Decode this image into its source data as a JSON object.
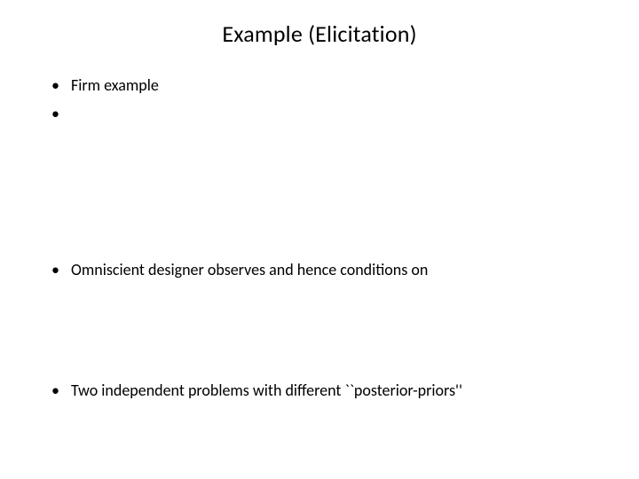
{
  "title": "Example (Elicitation)",
  "bullets": {
    "b1": "Firm example",
    "b2": "",
    "b3": "Omniscient designer observes  and hence conditions on",
    "b4": "Two independent problems with different ``posterior-priors''"
  },
  "style": {
    "background_color": "#ffffff",
    "text_color": "#000000",
    "title_fontsize": 26,
    "body_fontsize": 18,
    "font_family": "Calibri",
    "bullet_glyph": "•",
    "slide_width": 720,
    "slide_height": 540
  }
}
